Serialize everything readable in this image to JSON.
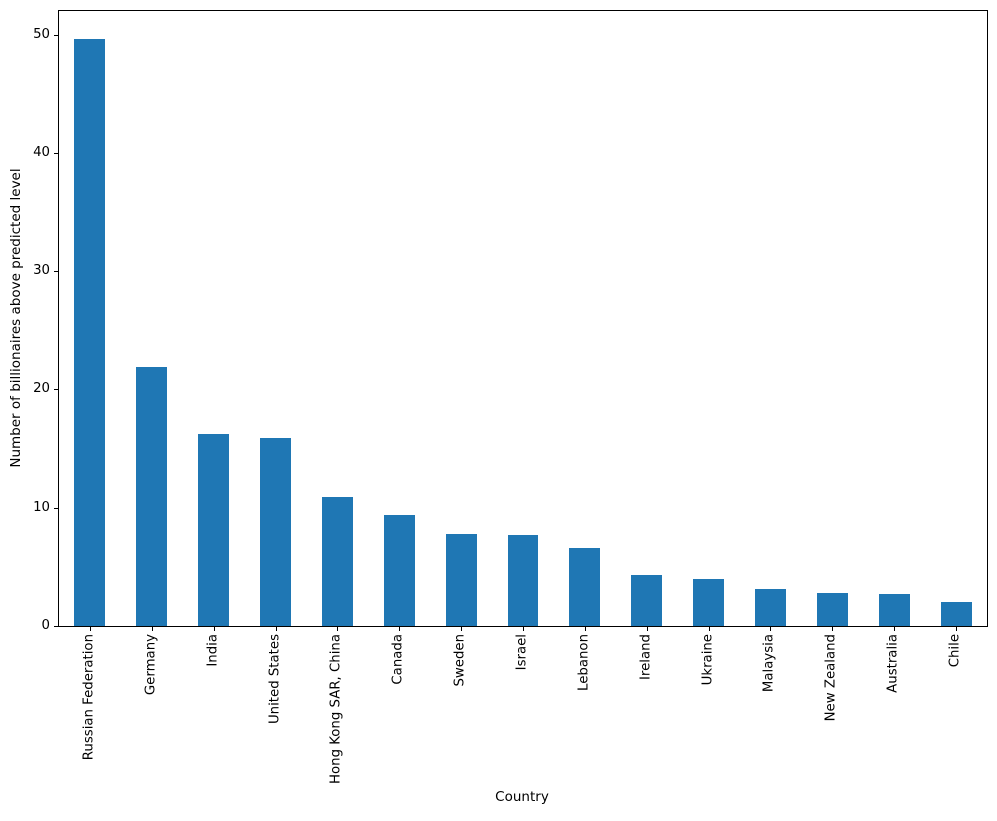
{
  "chart_data": {
    "type": "bar",
    "title": "",
    "xlabel": "Country",
    "ylabel": "Number of billionaires above predicted level",
    "categories": [
      "Russian Federation",
      "Germany",
      "India",
      "United States",
      "Hong Kong SAR, China",
      "Canada",
      "Sweden",
      "Israel",
      "Lebanon",
      "Ireland",
      "Ukraine",
      "Malaysia",
      "New Zealand",
      "Australia",
      "Chile"
    ],
    "values": [
      49.6,
      21.9,
      16.2,
      15.9,
      10.9,
      9.4,
      7.8,
      7.7,
      6.6,
      4.3,
      4.0,
      3.1,
      2.75,
      2.7,
      2.0
    ],
    "yticks": [
      0,
      10,
      20,
      30,
      40,
      50
    ],
    "ylim": [
      0,
      52
    ],
    "bar_color": "#1f77b4",
    "axis_color": "#000000",
    "text_color": "#000000",
    "grid": false,
    "legend": "none",
    "bar_width_fraction": 0.5,
    "xtick_label_rotation": 90
  }
}
